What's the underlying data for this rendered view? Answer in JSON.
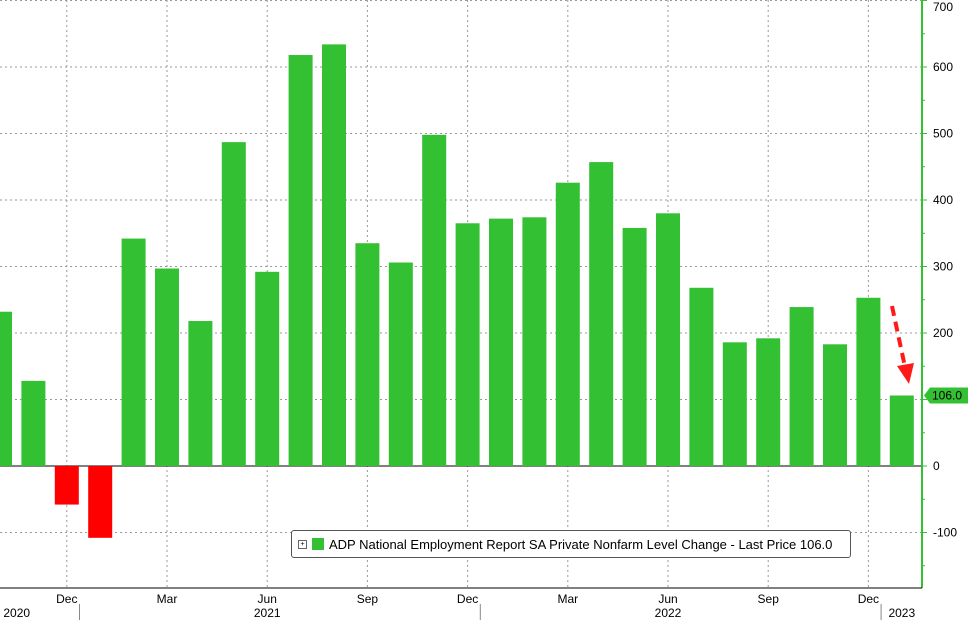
{
  "chart_data": {
    "type": "bar",
    "title": "",
    "xlabel": "",
    "ylabel": "",
    "ylim": [
      -180,
      700
    ],
    "y_ticks": [
      -100,
      0,
      100,
      200,
      300,
      400,
      500,
      600,
      700
    ],
    "categories": [
      "Oct 2020",
      "Nov 2020",
      "Dec 2020",
      "Jan 2021",
      "Feb 2021",
      "Mar 2021",
      "Apr 2021",
      "May 2021",
      "Jun 2021",
      "Jul 2021",
      "Aug 2021",
      "Sep 2021",
      "Oct 2021",
      "Nov 2021",
      "Dec 2021",
      "Jan 2022",
      "Feb 2022",
      "Mar 2022",
      "Apr 2022",
      "May 2022",
      "Jun 2022",
      "Jul 2022",
      "Aug 2022",
      "Sep 2022",
      "Oct 2022",
      "Nov 2022",
      "Dec 2022",
      "Jan 2023"
    ],
    "values": [
      232,
      128,
      -58,
      -108,
      342,
      297,
      218,
      487,
      292,
      618,
      634,
      335,
      306,
      498,
      365,
      372,
      374,
      426,
      457,
      358,
      380,
      268,
      186,
      192,
      239,
      183,
      253,
      106
    ],
    "month_labels": [
      {
        "text": "Dec",
        "index": 2
      },
      {
        "text": "Mar",
        "index": 5
      },
      {
        "text": "Jun",
        "index": 8
      },
      {
        "text": "Sep",
        "index": 11
      },
      {
        "text": "Dec",
        "index": 14
      },
      {
        "text": "Mar",
        "index": 17
      },
      {
        "text": "Jun",
        "index": 20
      },
      {
        "text": "Sep",
        "index": 23
      },
      {
        "text": "Dec",
        "index": 26
      }
    ],
    "year_labels": [
      {
        "text": "2020",
        "index": 0.5
      },
      {
        "text": "2021",
        "index": 8
      },
      {
        "text": "2022",
        "index": 20
      },
      {
        "text": "2023",
        "index": 27
      }
    ],
    "last_price_label": "106.0",
    "legend": {
      "text": "ADP National Employment Report SA Private Nonfarm Level Change - Last Price 106.0",
      "toggle": "+",
      "placement": "bottom-center"
    },
    "grid": true,
    "colors": {
      "positive": "#33c033",
      "negative": "#ff0000",
      "axis": "#33c033",
      "arrow": "#ff1a1a",
      "grid": "#999999"
    }
  }
}
